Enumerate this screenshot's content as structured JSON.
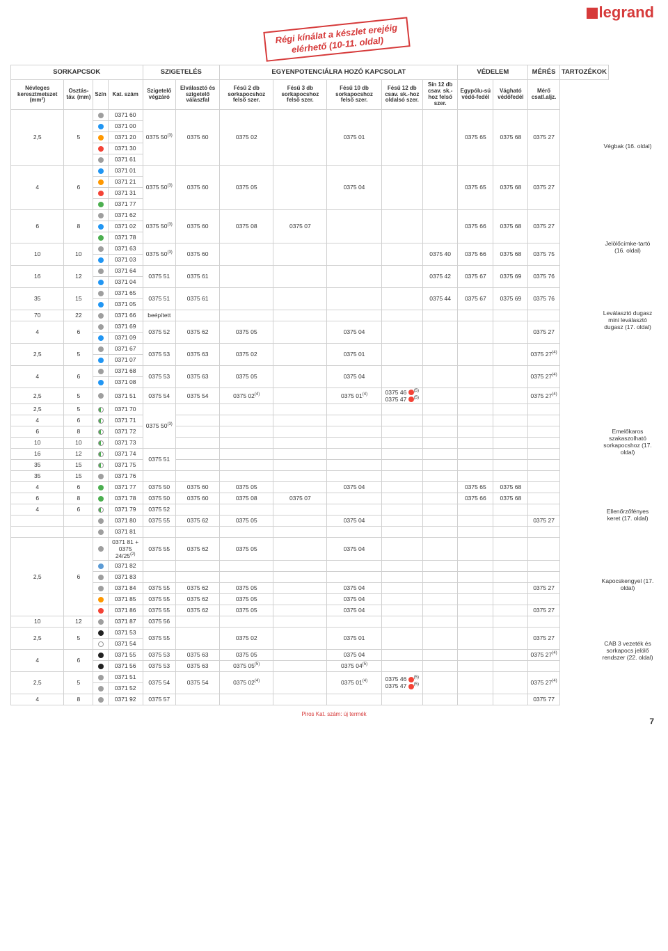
{
  "logo_text": "legrand",
  "stamp_line1": "Régi kínálat a készlet erejéig",
  "stamp_line2": "elérhető (10-11. oldal)",
  "group_headers": [
    "SORKAPCSOK",
    "SZIGETELÉS",
    "EGYENPOTENCIÁLRA HOZÓ KAPCSOLAT",
    "VÉDELEM",
    "MÉRÉS",
    "TARTOZÉKOK"
  ],
  "col_headers": [
    "Névleges keresztmetszet (mm²)",
    "Osztás-táv. (mm)",
    "Szín",
    "Kat. szám",
    "Szigetelő végzáró",
    "Elválasztó és szigetelő válaszfal",
    "Fésű 2 db sorkapocshoz felső szer.",
    "Fésű 3 db sorkapocshoz felső szer.",
    "Fésű 10 db sorkapocshoz felső szer.",
    "Fésű 12 db csav. sk.-hoz oldalsó szer.",
    "Sín 12 db csav. sk.-hoz felső szer.",
    "Egypólu-sú védő-fedél",
    "Vágható védőfedél",
    "Mérő csatl.aljz."
  ],
  "side_labels": [
    "Végbak (16. oldal)",
    "Jelölőcímke-tartó (16. oldal)",
    "Leválasztó dugasz mini leválasztó dugasz (17. oldal)",
    "Emelőkaros szakaszolható sorkapocshoz (17. oldal)",
    "Ellenőrzőfényes keret (17. oldal)",
    "Kapocskengyel (17. oldal)",
    "CAB 3 vezeték és sorkapocs jelölő rendszer (22. oldal)"
  ],
  "colors": {
    "grey": "#9e9e9e",
    "blue": "#2196f3",
    "orange": "#ff9800",
    "red": "#f44336",
    "green": "#4caf50",
    "white": "#ffffff",
    "black": "#212121",
    "nat": "#e0e0e0",
    "blueish": "#5c9bd5",
    "yellow": "#ffc107"
  },
  "rows": [
    {
      "mm": "2,5",
      "pitch": "5",
      "span": 5,
      "items": [
        {
          "c": "grey",
          "k": "0371 60"
        },
        {
          "c": "blue",
          "k": "0371 00"
        },
        {
          "c": "orange",
          "k": "0371 20"
        },
        {
          "c": "red",
          "k": "0371 30"
        },
        {
          "c": "grey",
          "k": "0371 61"
        }
      ],
      "v": [
        "0375 50(3)",
        "0375 60",
        "0375 02",
        "",
        "0375 01",
        "",
        "",
        "0375 65",
        "0375 68",
        "0375 27"
      ]
    },
    {
      "mm": "4",
      "pitch": "6",
      "span": 4,
      "items": [
        {
          "c": "blue",
          "k": "0371 01"
        },
        {
          "c": "orange",
          "k": "0371 21"
        },
        {
          "c": "red",
          "k": "0371 31"
        },
        {
          "c": "green",
          "k": "0371 77"
        }
      ],
      "v": [
        "0375 50(3)",
        "0375 60",
        "0375 05",
        "",
        "0375 04",
        "",
        "",
        "0375 65",
        "0375 68",
        "0375 27"
      ]
    },
    {
      "mm": "6",
      "pitch": "8",
      "span": 3,
      "items": [
        {
          "c": "grey",
          "k": "0371 62"
        },
        {
          "c": "blue",
          "k": "0371 02"
        },
        {
          "c": "green",
          "k": "0371 78"
        }
      ],
      "v": [
        "0375 50(3)",
        "0375 60",
        "0375 08",
        "0375 07",
        "",
        "",
        "",
        "0375 66",
        "0375 68",
        "0375 27"
      ]
    },
    {
      "mm": "10",
      "pitch": "10",
      "span": 2,
      "items": [
        {
          "c": "grey",
          "k": "0371 63"
        },
        {
          "c": "blue",
          "k": "0371 03"
        }
      ],
      "v": [
        "0375 50(3)",
        "0375 60",
        "",
        "",
        "",
        "",
        "0375 40",
        "0375 66",
        "0375 68",
        "0375 75"
      ]
    },
    {
      "mm": "16",
      "pitch": "12",
      "span": 2,
      "items": [
        {
          "c": "grey",
          "k": "0371 64"
        },
        {
          "c": "blue",
          "k": "0371 04"
        }
      ],
      "v": [
        "0375 51",
        "0375 61",
        "",
        "",
        "",
        "",
        "0375 42",
        "0375 67",
        "0375 69",
        "0375 76"
      ]
    },
    {
      "mm": "35",
      "pitch": "15",
      "span": 2,
      "items": [
        {
          "c": "grey",
          "k": "0371 65"
        },
        {
          "c": "blue",
          "k": "0371 05"
        }
      ],
      "v": [
        "0375 51",
        "0375 61",
        "",
        "",
        "",
        "",
        "0375 44",
        "0375 67",
        "0375 69",
        "0375 76"
      ]
    },
    {
      "mm": "70",
      "pitch": "22",
      "span": 1,
      "items": [
        {
          "c": "grey",
          "k": "0371 66"
        }
      ],
      "v": [
        "beépített",
        "",
        "",
        "",
        "",
        "",
        "",
        "",
        "",
        ""
      ]
    },
    {
      "mm": "4",
      "pitch": "6",
      "span": 2,
      "items": [
        {
          "c": "grey",
          "k": "0371 69"
        },
        {
          "c": "blue",
          "k": "0371 09"
        }
      ],
      "v": [
        "0375 52",
        "0375 62",
        "0375 05",
        "",
        "0375 04",
        "",
        "",
        "",
        "",
        "0375 27"
      ]
    },
    {
      "mm": "2,5",
      "pitch": "5",
      "span": 2,
      "items": [
        {
          "c": "grey",
          "k": "0371 67"
        },
        {
          "c": "blue",
          "k": "0371 07"
        }
      ],
      "v": [
        "0375 53",
        "0375 63",
        "0375 02",
        "",
        "0375 01",
        "",
        "",
        "",
        "",
        "0375 27(4)"
      ]
    },
    {
      "mm": "4",
      "pitch": "6",
      "span": 2,
      "items": [
        {
          "c": "grey",
          "k": "0371 68"
        },
        {
          "c": "blue",
          "k": "0371 08"
        }
      ],
      "v": [
        "0375 53",
        "0375 63",
        "0375 05",
        "",
        "0375 04",
        "",
        "",
        "",
        "",
        "0375 27(4)"
      ]
    },
    {
      "mm": "2,5",
      "pitch": "5",
      "span": 1,
      "items": [
        {
          "c": "grey",
          "k": "0371 51"
        }
      ],
      "v": [
        "0375 54",
        "0375 54",
        "0375 02(4)",
        "",
        "0375 01(4)",
        "0375 46 ●(5)\n0375 47 ●(5)",
        "",
        "",
        "",
        "0375 27(4)"
      ]
    },
    {
      "mm": "2,5",
      "pitch": "5",
      "span": 1,
      "items": [
        {
          "c": "green",
          "h": true,
          "k": "0371 70"
        }
      ],
      "v9span": 4,
      "v": [
        "0375 50(3)",
        "",
        "",
        "",
        "",
        "",
        "",
        "",
        "",
        ""
      ]
    },
    {
      "mm": "4",
      "pitch": "6",
      "span": 1,
      "items": [
        {
          "c": "green",
          "h": true,
          "k": "0371 71"
        }
      ],
      "skip9": true,
      "v": [
        "",
        "",
        "",
        "",
        "",
        "",
        "",
        "",
        "",
        ""
      ]
    },
    {
      "mm": "6",
      "pitch": "8",
      "span": 1,
      "items": [
        {
          "c": "green",
          "h": true,
          "k": "0371 72"
        }
      ],
      "skip9": true,
      "v": [
        "",
        "",
        "",
        "",
        "",
        "",
        "",
        "",
        "",
        ""
      ]
    },
    {
      "mm": "10",
      "pitch": "10",
      "span": 1,
      "items": [
        {
          "c": "green",
          "h": true,
          "k": "0371 73"
        }
      ],
      "skip9": true,
      "v": [
        "",
        "",
        "",
        "",
        "",
        "",
        "",
        "",
        "",
        ""
      ]
    },
    {
      "mm": "16",
      "pitch": "12",
      "span": 1,
      "items": [
        {
          "c": "green",
          "h": true,
          "k": "0371 74"
        }
      ],
      "v9span": 2,
      "v": [
        "0375 51",
        "",
        "",
        "",
        "",
        "",
        "",
        "",
        "",
        ""
      ]
    },
    {
      "mm": "35",
      "pitch": "15",
      "span": 1,
      "items": [
        {
          "c": "green",
          "h": true,
          "k": "0371 75"
        }
      ],
      "skip9": true,
      "v": [
        "",
        "",
        "",
        "",
        "",
        "",
        "",
        "",
        "",
        ""
      ]
    },
    {
      "mm": "35",
      "pitch": "15",
      "span": 1,
      "items": [
        {
          "c": "grey",
          "k": "0371 76"
        }
      ],
      "v": [
        "",
        "",
        "",
        "",
        "",
        "",
        "",
        "",
        "",
        ""
      ]
    },
    {
      "mm": "4",
      "pitch": "6",
      "span": 1,
      "items": [
        {
          "c": "green",
          "k": "0371 77"
        }
      ],
      "v": [
        "0375 50",
        "0375 60",
        "0375 05",
        "",
        "0375 04",
        "",
        "",
        "0375 65",
        "0375 68",
        ""
      ]
    },
    {
      "mm": "6",
      "pitch": "8",
      "span": 1,
      "items": [
        {
          "c": "green",
          "k": "0371 78"
        }
      ],
      "v": [
        "0375 50",
        "0375 60",
        "0375 08",
        "0375 07",
        "",
        "",
        "",
        "0375 66",
        "0375 68",
        ""
      ]
    },
    {
      "mm": "4",
      "pitch": "6",
      "span": 1,
      "items": [
        {
          "c": "green",
          "h": true,
          "k": "0371 79"
        }
      ],
      "v": [
        "0375 52",
        "",
        "",
        "",
        "",
        "",
        "",
        "",
        "",
        ""
      ]
    },
    {
      "mm": "",
      "pitch": "",
      "span": 1,
      "items": [
        {
          "c": "grey",
          "k": "0371 80"
        }
      ],
      "v": [
        "0375 55",
        "0375 62",
        "0375 05",
        "",
        "0375 04",
        "",
        "",
        "",
        "",
        "0375 27"
      ]
    },
    {
      "mm": "",
      "pitch": "",
      "span": 1,
      "items": [
        {
          "c": "grey",
          "k": "0371 81"
        }
      ],
      "v": [
        "",
        "",
        "",
        "",
        "",
        "",
        "",
        "",
        "",
        ""
      ]
    },
    {
      "mm": "2,5",
      "pitch": "6",
      "span": 6,
      "items": [
        {
          "c": "grey",
          "k": "0371 81 + 0375 24/25(2)"
        },
        {
          "c": "blueish",
          "k": "0371 82"
        },
        {
          "c": "grey",
          "k": "0371 83"
        },
        {
          "c": "grey",
          "k": "0371 84"
        },
        {
          "c": "orange",
          "k": "0371 85"
        },
        {
          "c": "red",
          "k": "0371 86"
        }
      ],
      "multi": [
        [
          "0375 55",
          "0375 62",
          "0375 05",
          "",
          "0375 04",
          "",
          "",
          "",
          "",
          ""
        ],
        [
          "",
          "",
          "",
          "",
          "",
          "",
          "",
          "",
          "",
          ""
        ],
        [
          "",
          "",
          "",
          "",
          "",
          "",
          "",
          "",
          "",
          ""
        ],
        [
          "0375 55",
          "0375 62",
          "0375 05",
          "",
          "0375 04",
          "",
          "",
          "",
          "",
          "0375 27"
        ],
        [
          "0375 55",
          "0375 62",
          "0375 05",
          "",
          "0375 04",
          "",
          "",
          "",
          "",
          ""
        ],
        [
          "0375 55",
          "0375 62",
          "0375 05",
          "",
          "0375 04",
          "",
          "",
          "",
          "",
          "0375 27"
        ]
      ]
    },
    {
      "mm": "10",
      "pitch": "12",
      "span": 1,
      "items": [
        {
          "c": "grey",
          "k": "0371 87"
        }
      ],
      "v": [
        "0375 56",
        "",
        "",
        "",
        "",
        "",
        "",
        "",
        "",
        ""
      ]
    },
    {
      "mm": "2,5",
      "pitch": "5",
      "span": 2,
      "items": [
        {
          "c": "black",
          "k": "0371 53"
        },
        {
          "c": "white",
          "k": "0371 54"
        }
      ],
      "v": [
        "0375 55",
        "",
        "0375 02",
        "",
        "0375 01",
        "",
        "",
        "",
        "",
        "0375 27"
      ]
    },
    {
      "mm": "4",
      "pitch": "6",
      "span": 2,
      "items": [
        {
          "c": "black",
          "k": "0371 55"
        },
        {
          "c": "black",
          "k": "0371 56"
        }
      ],
      "multi": [
        [
          "0375 53",
          "0375 63",
          "0375 05",
          "",
          "0375 04",
          "",
          "",
          "",
          "",
          "0375 27(4)"
        ],
        [
          "0375 53",
          "0375 63",
          "0375 05(5)",
          "",
          "0375 04(5)",
          "",
          "",
          "",
          "",
          ""
        ]
      ]
    },
    {
      "mm": "2,5",
      "pitch": "5",
      "span": 2,
      "items": [
        {
          "c": "grey",
          "k": "0371 51"
        },
        {
          "c": "grey",
          "k": "0371 52"
        }
      ],
      "v": [
        "0375 54",
        "0375 54",
        "0375 02(4)",
        "",
        "0375 01(4)",
        "0375 46 ●(5)\n0375 47 ●(5)",
        "",
        "",
        "",
        "0375 27(4)"
      ]
    },
    {
      "mm": "4",
      "pitch": "8",
      "span": 1,
      "items": [
        {
          "c": "grey",
          "k": "0371 92"
        }
      ],
      "v": [
        "0375 57",
        "",
        "",
        "",
        "",
        "",
        "",
        "",
        "",
        "0375 77"
      ]
    }
  ],
  "footer_note": "Piros Kat. szám: új termék",
  "page_num": "7",
  "side_positions": [
    205,
    345,
    445,
    615,
    730,
    830,
    920
  ]
}
